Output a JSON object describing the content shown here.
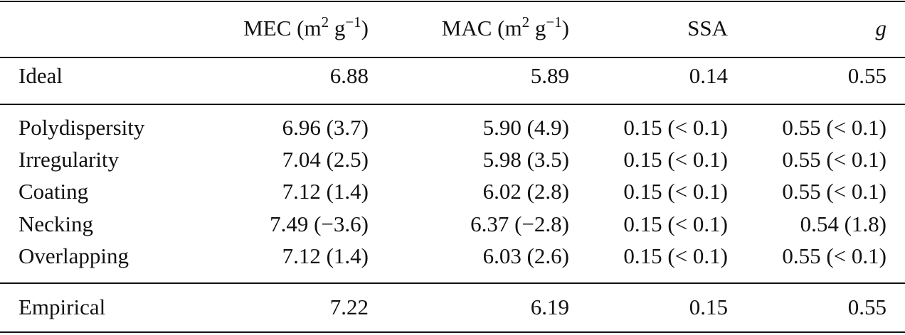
{
  "table": {
    "header": [
      [],
      [
        {
          "t": "MEC (m"
        },
        {
          "sup": "2"
        },
        {
          "t": " g"
        },
        {
          "sup": "−1"
        },
        {
          "t": ")"
        }
      ],
      [
        {
          "t": "MAC (m"
        },
        {
          "sup": "2"
        },
        {
          "t": " g"
        },
        {
          "sup": "−1"
        },
        {
          "t": ")"
        }
      ],
      [
        {
          "t": "SSA"
        }
      ],
      [
        {
          "i": "g"
        }
      ]
    ],
    "groups": [
      [
        [
          "Ideal",
          "6.88",
          "5.89",
          "0.14",
          "0.55"
        ]
      ],
      [
        [
          "Polydispersity",
          "6.96 (3.7)",
          "5.90 (4.9)",
          "0.15 (< 0.1)",
          "0.55 (< 0.1)"
        ],
        [
          "Irregularity",
          "7.04 (2.5)",
          "5.98 (3.5)",
          "0.15 (< 0.1)",
          "0.55 (< 0.1)"
        ],
        [
          "Coating",
          "7.12 (1.4)",
          "6.02 (2.8)",
          "0.15 (< 0.1)",
          "0.55 (< 0.1)"
        ],
        [
          "Necking",
          "7.49 (−3.6)",
          "6.37 (−2.8)",
          "0.15 (< 0.1)",
          "0.54 (1.8)"
        ],
        [
          "Overlapping",
          "7.12 (1.4)",
          "6.03 (2.6)",
          "0.15 (< 0.1)",
          "0.55 (< 0.1)"
        ]
      ],
      [
        [
          "Empirical",
          "7.22",
          "6.19",
          "0.15",
          "0.55"
        ]
      ]
    ]
  }
}
